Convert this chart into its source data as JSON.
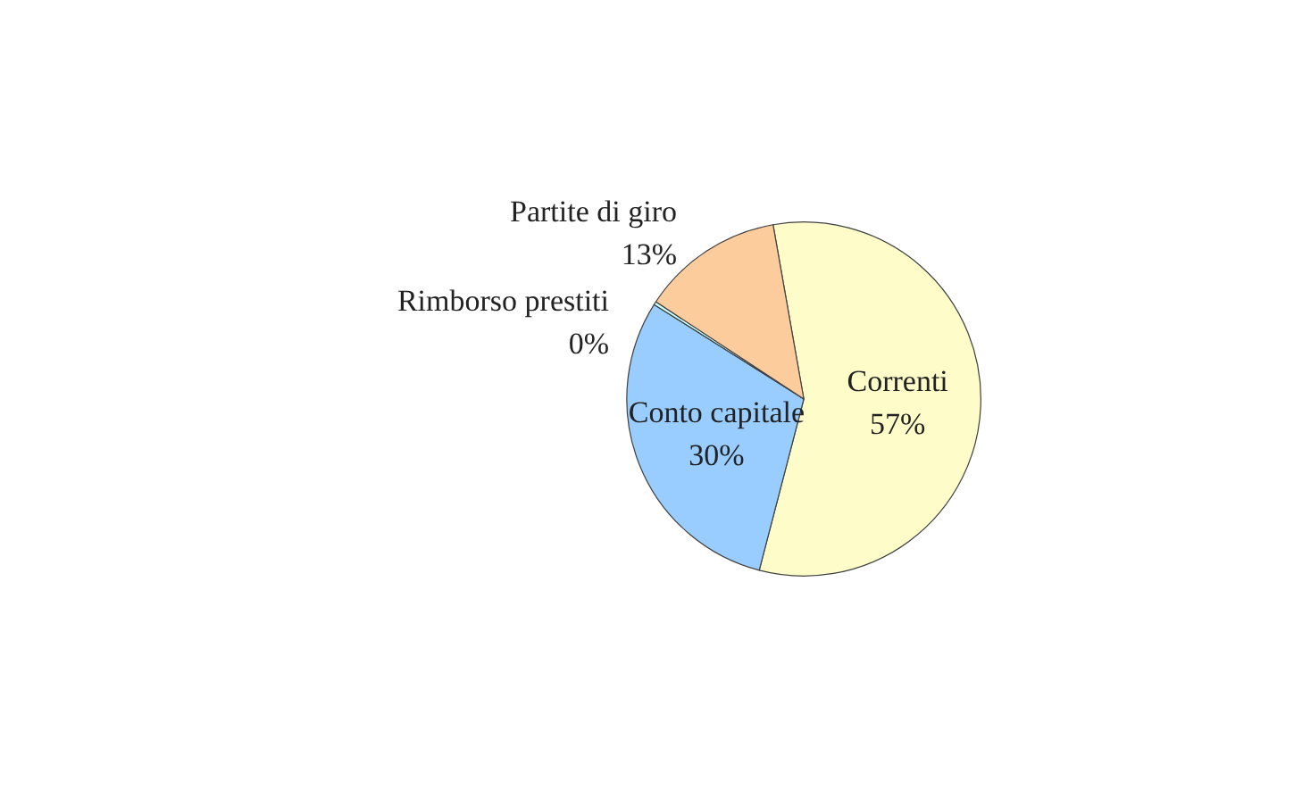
{
  "chart_data": {
    "type": "pie",
    "categories": [
      "Correnti",
      "Conto capitale",
      "Rimborso prestiti",
      "Partite di giro"
    ],
    "values": [
      57,
      30,
      0.3,
      13
    ],
    "value_labels": [
      "57%",
      "30%",
      "0%",
      "13%"
    ],
    "colors": [
      "#fefcc8",
      "#99ccff",
      "#ccffff",
      "#fccc9c"
    ],
    "legend": false
  }
}
